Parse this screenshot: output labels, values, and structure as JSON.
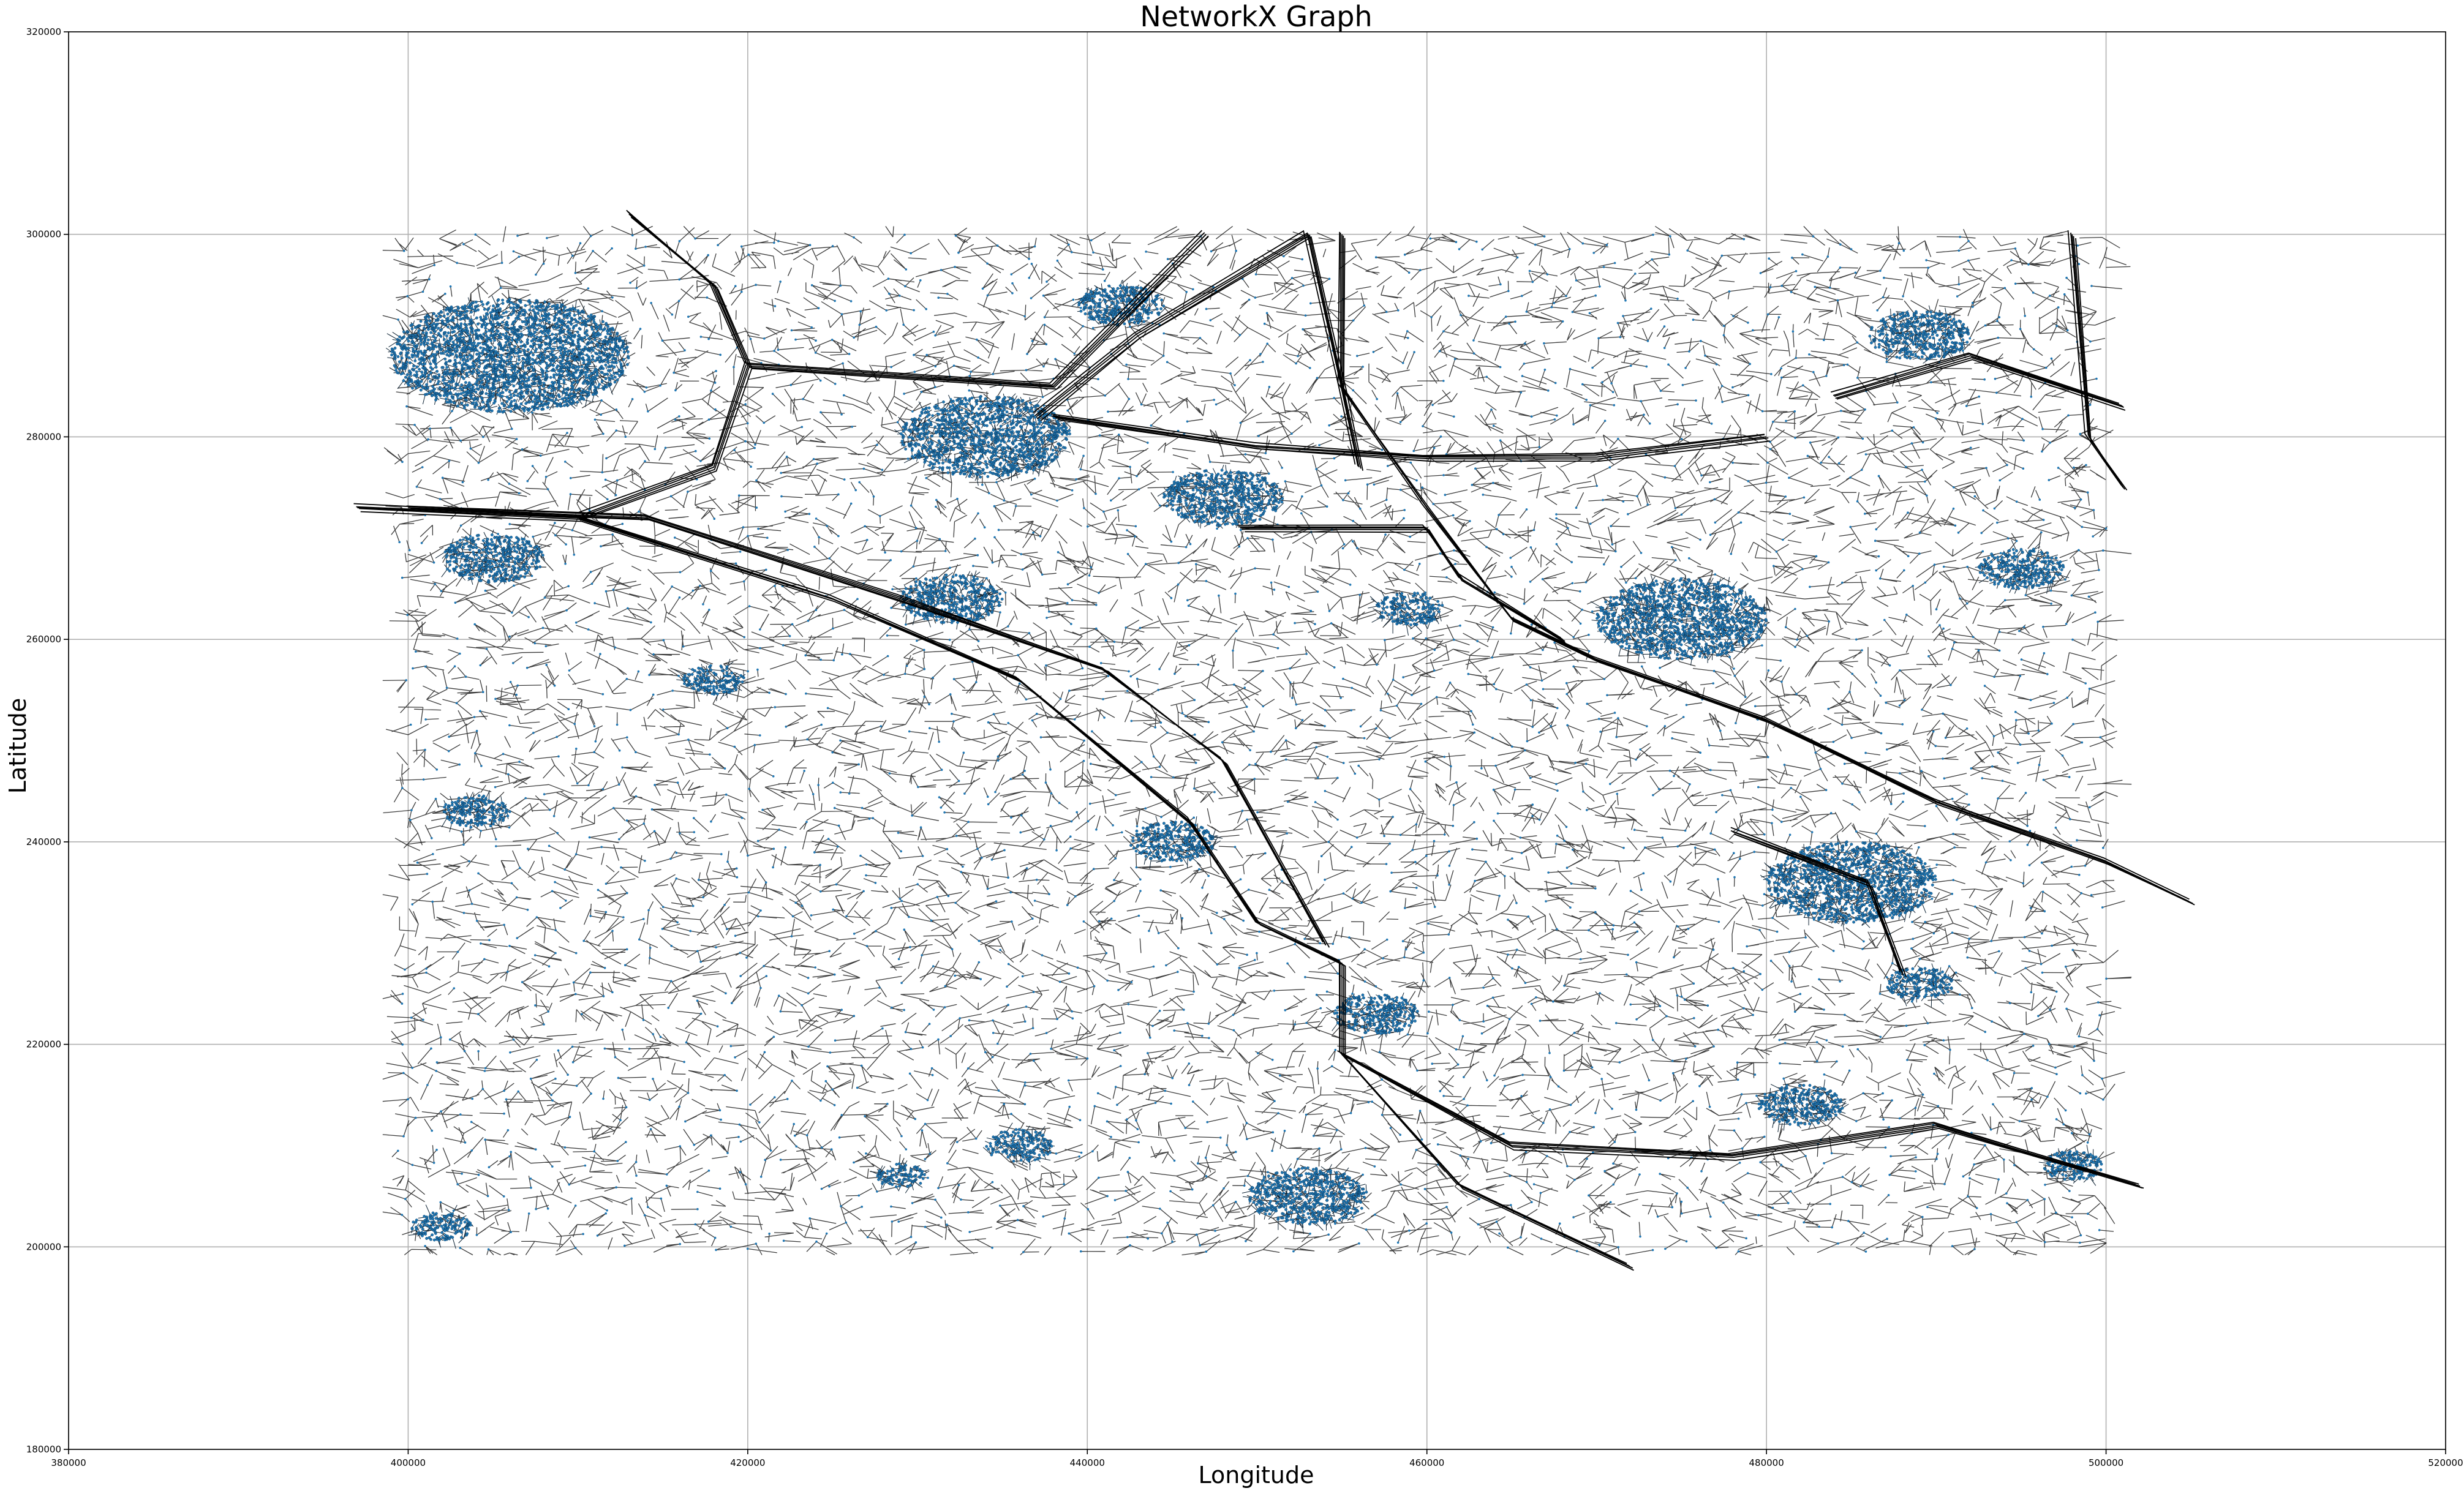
{
  "chart_data": {
    "type": "network_graph",
    "title": "NetworkX Graph",
    "xlabel": "Longitude",
    "ylabel": "Latitude",
    "xlim": [
      380000,
      520000
    ],
    "ylim": [
      180000,
      320000
    ],
    "x_ticks": [
      380000,
      400000,
      420000,
      440000,
      460000,
      480000,
      500000,
      520000
    ],
    "y_ticks": [
      180000,
      200000,
      220000,
      240000,
      260000,
      280000,
      300000,
      320000
    ],
    "x_tick_labels": [
      "380000",
      "400000",
      "420000",
      "440000",
      "460000",
      "480000",
      "500000",
      "520000"
    ],
    "y_tick_labels": [
      "180000",
      "200000",
      "220000",
      "240000",
      "260000",
      "280000",
      "300000",
      "320000"
    ],
    "grid": true,
    "node_color": "#1f77b4",
    "edge_color": "#000000",
    "node_extent": {
      "x": [
        400000,
        500000
      ],
      "y": [
        200000,
        300000
      ]
    },
    "dense_clusters": [
      {
        "x": 406000,
        "y": 288000,
        "r": 7000
      },
      {
        "x": 434000,
        "y": 280000,
        "r": 5000
      },
      {
        "x": 405000,
        "y": 268000,
        "r": 3000
      },
      {
        "x": 475000,
        "y": 262000,
        "r": 5000
      },
      {
        "x": 485000,
        "y": 236000,
        "r": 5000
      },
      {
        "x": 448000,
        "y": 274000,
        "r": 3500
      },
      {
        "x": 445000,
        "y": 240000,
        "r": 2500
      },
      {
        "x": 432000,
        "y": 264000,
        "r": 3000
      },
      {
        "x": 453000,
        "y": 205000,
        "r": 3500
      },
      {
        "x": 489000,
        "y": 290000,
        "r": 3000
      },
      {
        "x": 495000,
        "y": 267000,
        "r": 2500
      },
      {
        "x": 457000,
        "y": 223000,
        "r": 2500
      },
      {
        "x": 442000,
        "y": 293000,
        "r": 2500
      },
      {
        "x": 482000,
        "y": 214000,
        "r": 2500
      },
      {
        "x": 489000,
        "y": 226000,
        "r": 2000
      },
      {
        "x": 404000,
        "y": 243000,
        "r": 2000
      },
      {
        "x": 418000,
        "y": 256000,
        "r": 1800
      },
      {
        "x": 436000,
        "y": 210000,
        "r": 2000
      },
      {
        "x": 402000,
        "y": 202000,
        "r": 1800
      },
      {
        "x": 429000,
        "y": 207000,
        "r": 1500
      },
      {
        "x": 459000,
        "y": 263000,
        "r": 2000
      },
      {
        "x": 498000,
        "y": 208000,
        "r": 1800
      }
    ],
    "major_routes": [
      [
        [
          397000,
          273000
        ],
        [
          410000,
          272000
        ],
        [
          425000,
          264000
        ],
        [
          436000,
          256000
        ],
        [
          446000,
          242000
        ],
        [
          450000,
          232000
        ],
        [
          455000,
          228000
        ],
        [
          455000,
          219000
        ],
        [
          462000,
          206000
        ],
        [
          472000,
          198000
        ]
      ],
      [
        [
          400000,
          273000
        ],
        [
          414000,
          272000
        ],
        [
          429000,
          264000
        ],
        [
          441000,
          257000
        ],
        [
          448000,
          248000
        ],
        [
          454000,
          230000
        ]
      ],
      [
        [
          413000,
          302000
        ],
        [
          418000,
          295000
        ],
        [
          420000,
          287000
        ],
        [
          438000,
          285000
        ],
        [
          447000,
          300000
        ]
      ],
      [
        [
          420000,
          287000
        ],
        [
          418000,
          277000
        ],
        [
          410000,
          272000
        ]
      ],
      [
        [
          437000,
          282000
        ],
        [
          443000,
          290000
        ],
        [
          453000,
          300000
        ],
        [
          455000,
          285000
        ],
        [
          456000,
          277000
        ]
      ],
      [
        [
          438000,
          282000
        ],
        [
          450000,
          279000
        ],
        [
          460000,
          278000
        ],
        [
          470000,
          278000
        ],
        [
          480000,
          280000
        ]
      ],
      [
        [
          455000,
          300000
        ],
        [
          455000,
          285000
        ],
        [
          460000,
          273000
        ],
        [
          465000,
          262000
        ],
        [
          470000,
          258000
        ],
        [
          480000,
          252000
        ],
        [
          490000,
          244000
        ],
        [
          500000,
          238000
        ],
        [
          505000,
          234000
        ]
      ],
      [
        [
          449000,
          271000
        ],
        [
          460000,
          271000
        ],
        [
          462000,
          266000
        ],
        [
          468000,
          260000
        ]
      ],
      [
        [
          478000,
          241000
        ],
        [
          486000,
          236000
        ],
        [
          488000,
          227000
        ]
      ],
      [
        [
          455000,
          219000
        ],
        [
          465000,
          210000
        ],
        [
          478000,
          209000
        ],
        [
          490000,
          212000
        ],
        [
          502000,
          206000
        ]
      ],
      [
        [
          498000,
          300000
        ],
        [
          499000,
          280000
        ],
        [
          501000,
          275000
        ]
      ],
      [
        [
          484000,
          284000
        ],
        [
          492000,
          288000
        ],
        [
          501000,
          283000
        ]
      ]
    ]
  }
}
